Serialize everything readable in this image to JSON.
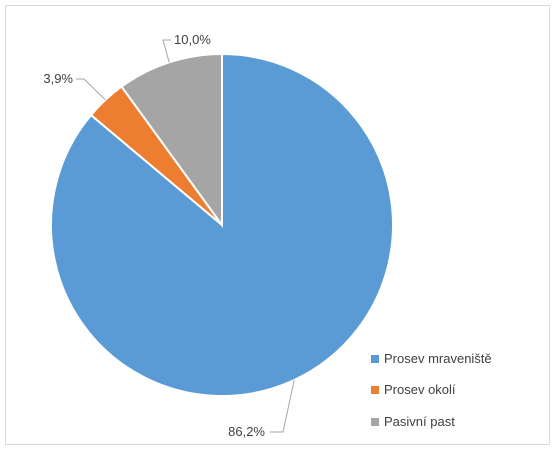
{
  "chart_data": {
    "type": "pie",
    "title": "",
    "categories": [
      "Prosev mraveniště",
      "Prosev okolí",
      "Pasivní past"
    ],
    "values": [
      86.2,
      3.9,
      10.0
    ],
    "value_labels": [
      "86,2%",
      "3,9%",
      "10,0%"
    ],
    "colors": [
      "#5b9bd5",
      "#ed7d31",
      "#a5a5a5"
    ],
    "start_angle_deg": 0,
    "direction": "clockwise",
    "legend_position": "bottom-right",
    "legend": [
      "Prosev mraveniště",
      "Prosev okolí",
      "Pasivní past"
    ]
  }
}
